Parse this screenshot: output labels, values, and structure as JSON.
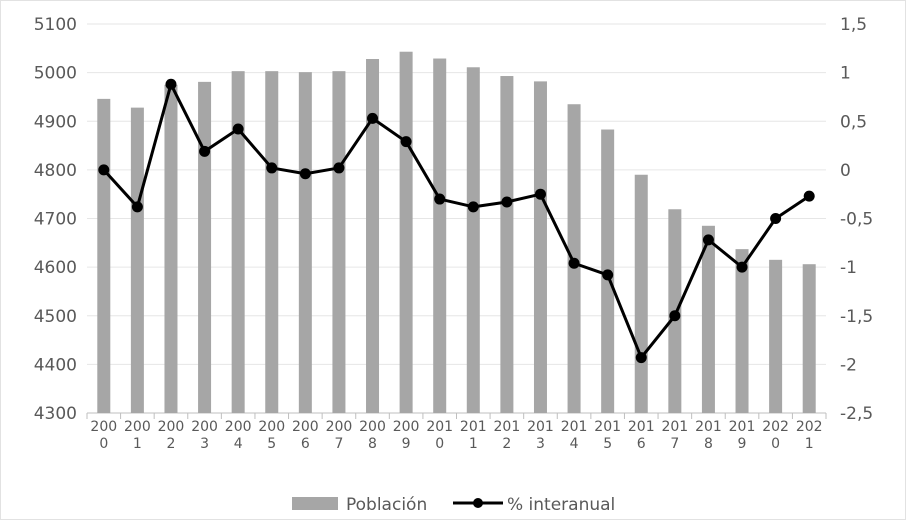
{
  "chart_data": {
    "type": "bar",
    "categories": [
      "2000",
      "2001",
      "2002",
      "2003",
      "2004",
      "2005",
      "2006",
      "2007",
      "2008",
      "2009",
      "2010",
      "2011",
      "2012",
      "2013",
      "2014",
      "2015",
      "2016",
      "2017",
      "2018",
      "2019",
      "2020",
      "2021"
    ],
    "category_label_lines": [
      [
        "200",
        "0"
      ],
      [
        "200",
        "1"
      ],
      [
        "200",
        "2"
      ],
      [
        "200",
        "3"
      ],
      [
        "200",
        "4"
      ],
      [
        "200",
        "5"
      ],
      [
        "200",
        "6"
      ],
      [
        "200",
        "7"
      ],
      [
        "200",
        "8"
      ],
      [
        "200",
        "9"
      ],
      [
        "201",
        "0"
      ],
      [
        "201",
        "1"
      ],
      [
        "201",
        "2"
      ],
      [
        "201",
        "3"
      ],
      [
        "201",
        "4"
      ],
      [
        "201",
        "5"
      ],
      [
        "201",
        "6"
      ],
      [
        "201",
        "7"
      ],
      [
        "201",
        "8"
      ],
      [
        "201",
        "9"
      ],
      [
        "202",
        "0"
      ],
      [
        "202",
        "1"
      ]
    ],
    "series": [
      {
        "name": "Población",
        "type": "bar",
        "axis": "left",
        "color": "#a6a6a6",
        "values": [
          4946,
          4928,
          4975,
          4981,
          5003,
          5003,
          5001,
          5003,
          5028,
          5043,
          5029,
          5011,
          4993,
          4982,
          4935,
          4883,
          4790,
          4719,
          4685,
          4637,
          4615,
          4606
        ]
      },
      {
        "name": "% interanual",
        "type": "line",
        "axis": "right",
        "color": "#000000",
        "values": [
          0.0,
          -0.38,
          0.88,
          0.19,
          0.42,
          0.02,
          -0.04,
          0.02,
          0.53,
          0.29,
          -0.3,
          -0.38,
          -0.33,
          -0.25,
          -0.96,
          -1.08,
          -1.93,
          -1.5,
          -0.72,
          -1.0,
          -0.5,
          -0.27
        ]
      }
    ],
    "y_left": {
      "min": 4300,
      "max": 5100,
      "step": 100,
      "tick_labels": [
        "4300",
        "4400",
        "4500",
        "4600",
        "4700",
        "4800",
        "4900",
        "5000",
        "5100"
      ]
    },
    "y_right": {
      "min": -2.5,
      "max": 1.5,
      "step": 0.5,
      "tick_labels": [
        "-2,5",
        "-2",
        "-1,5",
        "-1",
        "-0,5",
        "0",
        "0,5",
        "1",
        "1,5"
      ]
    },
    "grid": true,
    "legend_position": "bottom"
  }
}
